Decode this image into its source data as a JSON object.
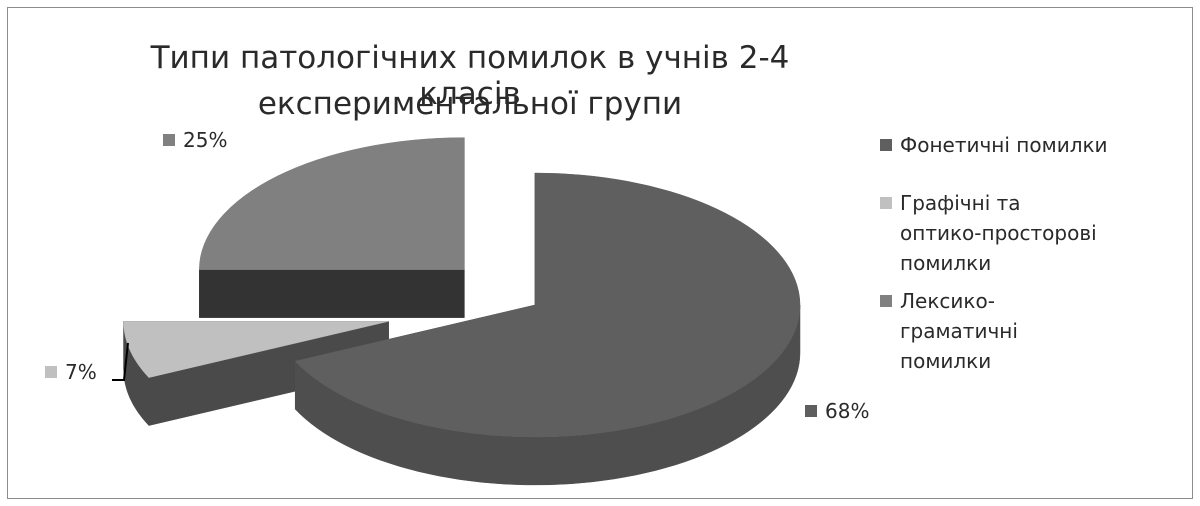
{
  "chart_data": {
    "type": "pie",
    "title": [
      "Типи патологічних помилок в учнів 2-4 класів",
      "експериментальної групи"
    ],
    "slices": [
      {
        "name": "Фонетичні помилки",
        "value": 68,
        "label": "68%",
        "color": "#5f5f5f",
        "side_color": "#4e4e4e"
      },
      {
        "name": "Графічні та оптико-просторові помилки",
        "value": 7,
        "label": "7%",
        "color": "#c0c0c0",
        "side_color": "#4a4a4a"
      },
      {
        "name": "Лексико-граматичні помилки",
        "value": 25,
        "label": "25%",
        "color": "#808080",
        "side_color": "#333333"
      }
    ],
    "legend": {
      "position": "right"
    },
    "style": "3d-exploded"
  }
}
